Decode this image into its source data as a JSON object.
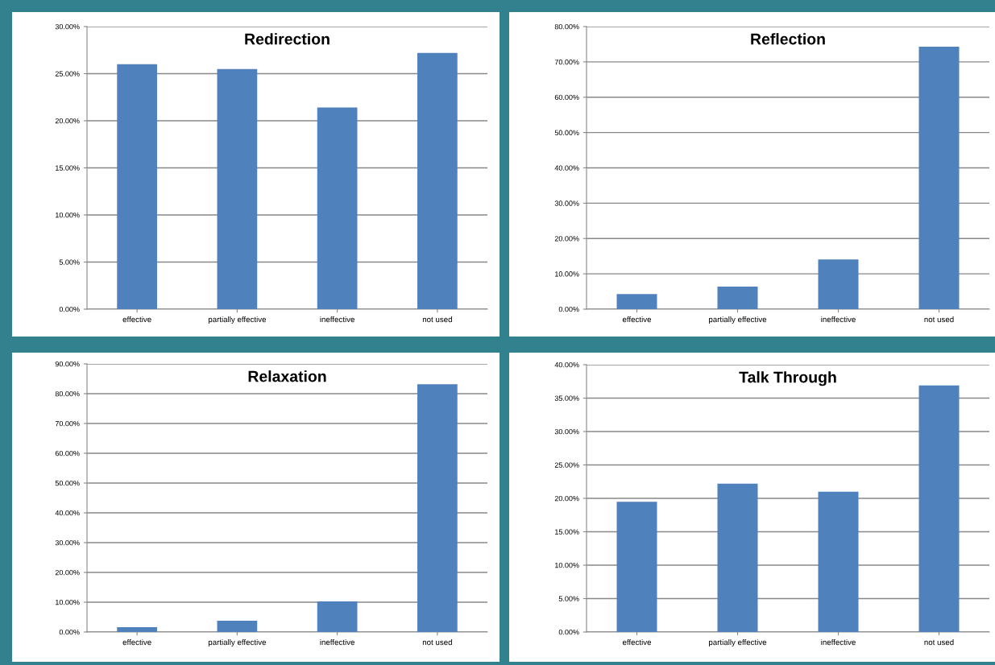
{
  "chart_data": [
    {
      "type": "bar",
      "title": "Redirection",
      "categories": [
        "effective",
        "partially effective",
        "ineffective",
        "not used"
      ],
      "values": [
        26.0,
        25.5,
        21.4,
        27.2
      ],
      "color": "#4f81bd",
      "ylim": [
        0,
        30
      ],
      "yticks": [
        {
          "value": 0,
          "label": "0.00%"
        },
        {
          "value": 5,
          "label": "5.00%"
        },
        {
          "value": 10,
          "label": "10.00%"
        },
        {
          "value": 15,
          "label": "15.00%"
        },
        {
          "value": 20,
          "label": "20.00%"
        },
        {
          "value": 25,
          "label": "25.00%"
        },
        {
          "value": 30,
          "label": "30.00%"
        }
      ],
      "grid": "y"
    },
    {
      "type": "bar",
      "title": "Reflection",
      "categories": [
        "effective",
        "partially effective",
        "ineffective",
        "not used"
      ],
      "values": [
        4.3,
        6.4,
        14.1,
        74.3
      ],
      "color": "#4f81bd",
      "ylim": [
        0,
        80
      ],
      "yticks": [
        {
          "value": 0,
          "label": "0.00%"
        },
        {
          "value": 10,
          "label": "10.00%"
        },
        {
          "value": 20,
          "label": "20.00%"
        },
        {
          "value": 30,
          "label": "30.00%"
        },
        {
          "value": 40,
          "label": "40.00%"
        },
        {
          "value": 50,
          "label": "50.00%"
        },
        {
          "value": 60,
          "label": "60.00%"
        },
        {
          "value": 70,
          "label": "70.00%"
        },
        {
          "value": 80,
          "label": "80.00%"
        }
      ],
      "grid": "y"
    },
    {
      "type": "bar",
      "title": "Relaxation",
      "categories": [
        "effective",
        "partially effective",
        "ineffective",
        "not used"
      ],
      "values": [
        1.6,
        3.8,
        10.3,
        83.2
      ],
      "color": "#4f81bd",
      "ylim": [
        0,
        90
      ],
      "yticks": [
        {
          "value": 0,
          "label": "0.00%"
        },
        {
          "value": 10,
          "label": "10.00%"
        },
        {
          "value": 20,
          "label": "20.00%"
        },
        {
          "value": 30,
          "label": "30.00%"
        },
        {
          "value": 40,
          "label": "40.00%"
        },
        {
          "value": 50,
          "label": "50.00%"
        },
        {
          "value": 60,
          "label": "60.00%"
        },
        {
          "value": 70,
          "label": "70.00%"
        },
        {
          "value": 80,
          "label": "80.00%"
        },
        {
          "value": 90,
          "label": "90.00%"
        }
      ],
      "grid": "y"
    },
    {
      "type": "bar",
      "title": "Talk Through",
      "categories": [
        "effective",
        "partially effective",
        "ineffective",
        "not used"
      ],
      "values": [
        19.5,
        22.2,
        21.0,
        36.9
      ],
      "color": "#4f81bd",
      "ylim": [
        0,
        40
      ],
      "yticks": [
        {
          "value": 0,
          "label": "0.00%"
        },
        {
          "value": 5,
          "label": "5.00%"
        },
        {
          "value": 10,
          "label": "10.00%"
        },
        {
          "value": 15,
          "label": "15.00%"
        },
        {
          "value": 20,
          "label": "20.00%"
        },
        {
          "value": 25,
          "label": "25.00%"
        },
        {
          "value": 30,
          "label": "30.00%"
        },
        {
          "value": 35,
          "label": "35.00%"
        },
        {
          "value": 40,
          "label": "40.00%"
        }
      ],
      "grid": "y"
    }
  ]
}
